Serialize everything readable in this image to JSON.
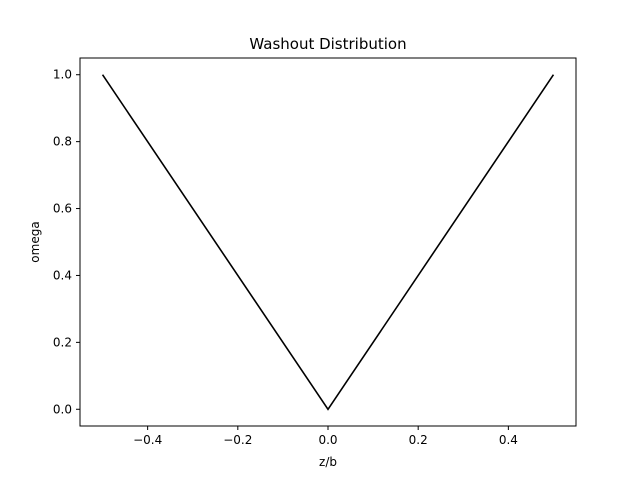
{
  "chart_data": {
    "type": "line",
    "title": "Washout Distribution",
    "xlabel": "z/b",
    "ylabel": "omega",
    "xlim": [
      -0.55,
      0.55
    ],
    "ylim": [
      -0.05,
      1.05
    ],
    "grid": false,
    "x_ticks": [
      -0.4,
      -0.2,
      0.0,
      0.2,
      0.4
    ],
    "x_tick_labels": [
      "−0.4",
      "−0.2",
      "0.0",
      "0.2",
      "0.4"
    ],
    "y_ticks": [
      0.0,
      0.2,
      0.4,
      0.6,
      0.8,
      1.0
    ],
    "y_tick_labels": [
      "0.0",
      "0.2",
      "0.4",
      "0.6",
      "0.8",
      "1.0"
    ],
    "series": [
      {
        "color": "#000000",
        "x": [
          -0.5,
          0.0,
          0.5
        ],
        "y": [
          1.0,
          0.0,
          1.0
        ]
      }
    ]
  }
}
